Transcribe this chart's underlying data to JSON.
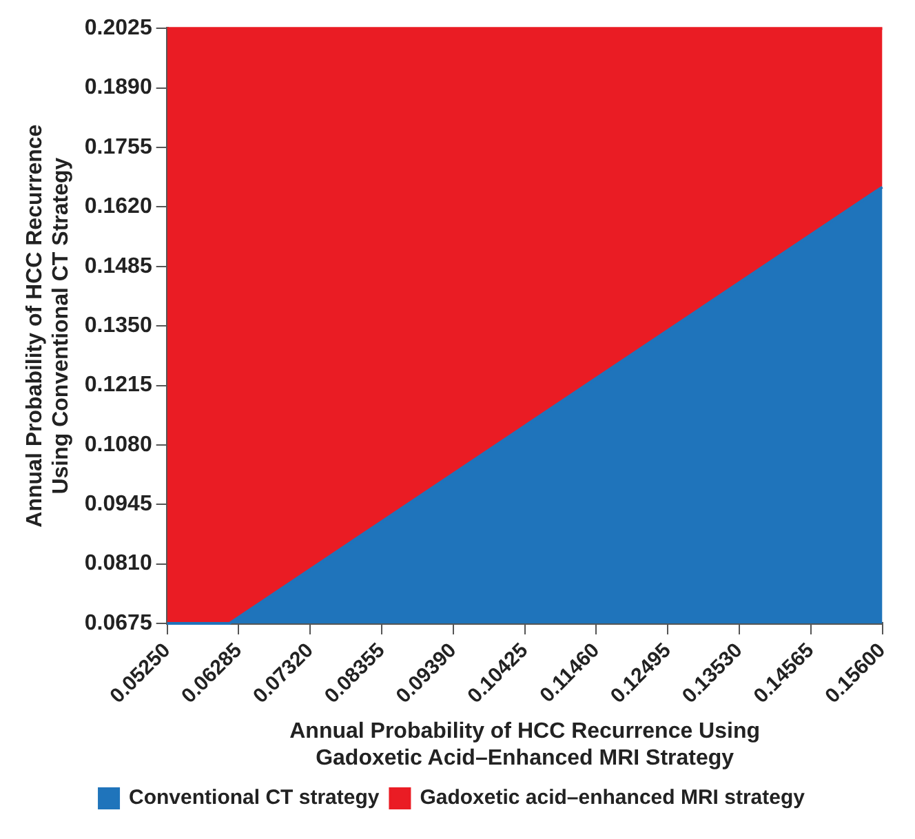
{
  "chart_data": {
    "type": "area",
    "xlabel": "Annual Probability of HCC Recurrence Using\nGadoxetic Acid–Enhanced MRI Strategy",
    "ylabel": "Annual Probability of HCC Recurrence\nUsing Conventional CT Strategy",
    "series": [
      {
        "name": "Conventional CT strategy",
        "color": "#1f74bb",
        "x": [
          0.0525,
          0.0615,
          0.156
        ],
        "values": [
          0.0675,
          0.0675,
          0.1665
        ]
      },
      {
        "name": "Gadoxetic acid–enhanced MRI strategy",
        "color": "#ea1c24",
        "x": [
          0.0525,
          0.10425,
          0.156
        ],
        "values": [
          0.2025,
          0.2025,
          0.2025
        ]
      }
    ],
    "xlim": [
      0.0525,
      0.156
    ],
    "xticks": [
      {
        "value": 0.0525,
        "label": "0.05250"
      },
      {
        "value": 0.06285,
        "label": "0.06285"
      },
      {
        "value": 0.0732,
        "label": "0.07320"
      },
      {
        "value": 0.08355,
        "label": "0.08355"
      },
      {
        "value": 0.0939,
        "label": "0.09390"
      },
      {
        "value": 0.10425,
        "label": "0.10425"
      },
      {
        "value": 0.1146,
        "label": "0.11460"
      },
      {
        "value": 0.12495,
        "label": "0.12495"
      },
      {
        "value": 0.1353,
        "label": "0.13530"
      },
      {
        "value": 0.14565,
        "label": "0.14565"
      },
      {
        "value": 0.156,
        "label": "0.15600"
      }
    ],
    "ylim": [
      0.0675,
      0.2025
    ],
    "yticks": [
      {
        "value": 0.0675,
        "label": "0.0675"
      },
      {
        "value": 0.081,
        "label": "0.0810"
      },
      {
        "value": 0.0945,
        "label": "0.0945"
      },
      {
        "value": 0.108,
        "label": "0.1080"
      },
      {
        "value": 0.1215,
        "label": "0.1215"
      },
      {
        "value": 0.135,
        "label": "0.1350"
      },
      {
        "value": 0.1485,
        "label": "0.1485"
      },
      {
        "value": 0.162,
        "label": "0.1620"
      },
      {
        "value": 0.1755,
        "label": "0.1755"
      },
      {
        "value": 0.189,
        "label": "0.1890"
      },
      {
        "value": 0.2025,
        "label": "0.2025"
      }
    ],
    "legend": "bottom"
  }
}
